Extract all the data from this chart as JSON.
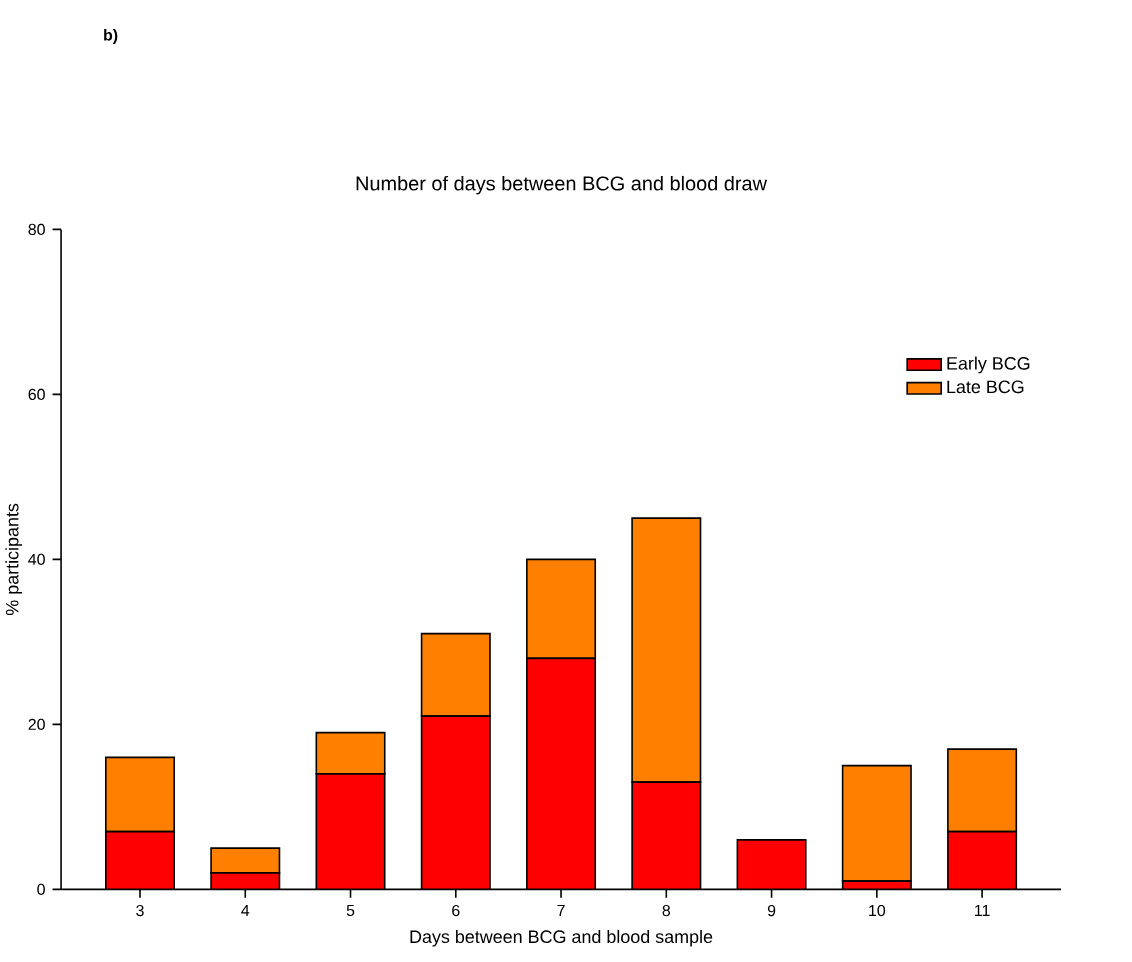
{
  "chart_data": {
    "type": "bar",
    "stacked": true,
    "title": "Number of days between BCG and blood draw",
    "xlabel": "Days between BCG and blood sample",
    "ylabel": "% participants",
    "annotations": [
      "b)"
    ],
    "categories": [
      "3",
      "4",
      "5",
      "6",
      "7",
      "8",
      "9",
      "10",
      "11"
    ],
    "series": [
      {
        "name": "Early BCG",
        "color": "#ff0000",
        "values": [
          7,
          2,
          14,
          21,
          28,
          13,
          6,
          1,
          7
        ]
      },
      {
        "name": "Late BCG",
        "color": "#ff8000",
        "values": [
          9,
          3,
          5,
          10,
          12,
          32,
          0,
          14,
          10
        ]
      }
    ],
    "ylim": [
      0,
      80
    ],
    "yticks": [
      0,
      20,
      40,
      60,
      80
    ],
    "legend": "top right",
    "grid": false
  }
}
